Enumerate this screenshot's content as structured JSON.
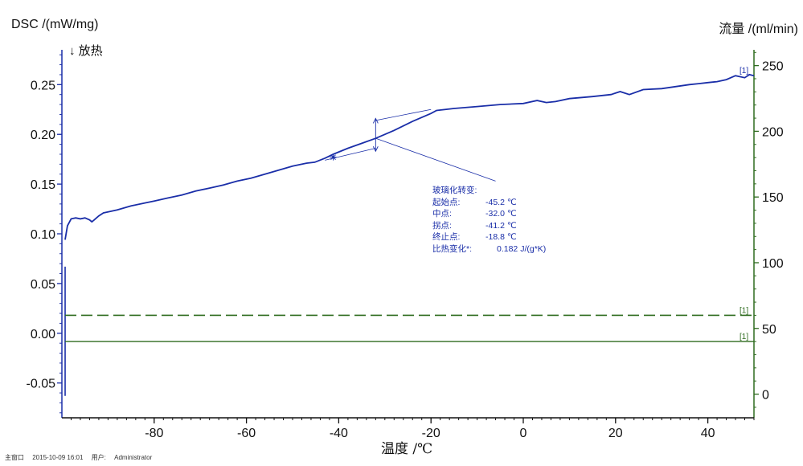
{
  "chart_data": {
    "type": "line",
    "xlabel": "温度 /℃",
    "ylabel": "DSC /(mW/mg)",
    "y2label": "流量 /(ml/min)",
    "exo_label": "↓ 放热",
    "xlim": [
      -100,
      50
    ],
    "ylim": [
      -0.085,
      0.285
    ],
    "y2lim": [
      -18,
      262
    ],
    "x_ticks": [
      -80,
      -60,
      -40,
      -20,
      0,
      20,
      40
    ],
    "y_ticks": [
      0.25,
      0.2,
      0.15,
      0.1,
      0.05,
      0.0,
      -0.05
    ],
    "y_tick_labels": [
      "0.25",
      "0.20",
      "0.15",
      "0.10",
      "0.05",
      "0.00",
      "-0.05"
    ],
    "y2_ticks": [
      250,
      200,
      150,
      100,
      50,
      0
    ],
    "y2_tick_labels": [
      "250",
      "200",
      "150",
      "100",
      "50",
      "0"
    ],
    "colors": {
      "dsc": "#1a2ea8",
      "flow": "#2e6b1e",
      "axis_left": "#1a2ea8",
      "axis_right": "#2e6b1e"
    },
    "series": [
      {
        "axis": "left",
        "style": "solid",
        "color": "#1a2ea8",
        "tag": "[1]",
        "x": [
          -99.3,
          -98.8,
          -98.0,
          -97.0,
          -96.0,
          -95.0,
          -94.0,
          -93.5,
          -93.0,
          -92.0,
          -91.0,
          -90.0,
          -88.0,
          -85.0,
          -82.0,
          -80.0,
          -77.0,
          -74.0,
          -71.0,
          -68.0,
          -65.0,
          -62.0,
          -59.0,
          -56.0,
          -53.0,
          -50.0,
          -47.0,
          -45.2,
          -43.0,
          -41.2,
          -38.0,
          -35.0,
          -32.0,
          -28.0,
          -24.0,
          -20.0,
          -18.8,
          -15.0,
          -10.0,
          -5.0,
          0.0,
          3.0,
          5.0,
          7.0,
          10.0,
          15.0,
          19.0,
          21.0,
          23.0,
          26.0,
          30.0,
          33.0,
          36.0,
          38.0,
          40.0,
          42.0,
          44.0,
          46.0,
          48.0,
          49.0,
          50.0
        ],
        "y": [
          0.094,
          0.108,
          0.115,
          0.116,
          0.115,
          0.116,
          0.114,
          0.112,
          0.114,
          0.118,
          0.121,
          0.122,
          0.124,
          0.128,
          0.131,
          0.133,
          0.136,
          0.139,
          0.143,
          0.146,
          0.149,
          0.153,
          0.156,
          0.16,
          0.164,
          0.168,
          0.171,
          0.172,
          0.176,
          0.18,
          0.186,
          0.191,
          0.196,
          0.204,
          0.213,
          0.221,
          0.224,
          0.226,
          0.228,
          0.23,
          0.231,
          0.234,
          0.232,
          0.233,
          0.236,
          0.238,
          0.24,
          0.243,
          0.24,
          0.245,
          0.246,
          0.248,
          0.25,
          0.251,
          0.252,
          0.253,
          0.255,
          0.259,
          0.257,
          0.26,
          0.259
        ]
      },
      {
        "axis": "right",
        "style": "dashed",
        "color": "#2e6b1e",
        "tag": "[1]",
        "x": [
          -99.3,
          50.0
        ],
        "y": [
          60,
          60
        ]
      },
      {
        "axis": "right",
        "style": "solid",
        "color": "#2e6b1e",
        "tag": "[1]",
        "x": [
          -99.3,
          50.0
        ],
        "y": [
          40,
          40
        ]
      }
    ],
    "annotation": {
      "title": "玻璃化转变:",
      "rows": [
        {
          "key": "起始点:",
          "value": "-45.2 ℃"
        },
        {
          "key": "中点:",
          "value": "-32.0 ℃"
        },
        {
          "key": "拐点:",
          "value": "-41.2 ℃"
        },
        {
          "key": "终止点:",
          "value": "-18.8 ℃"
        },
        {
          "key": "比热变化*:",
          "value": "0.182 J/(g*K)"
        }
      ],
      "midpoint": [
        -32.0,
        0.196
      ],
      "onset": [
        -41.2,
        0.177
      ],
      "step_low": [
        -32.0,
        0.183
      ],
      "step_high": [
        -32.0,
        0.216
      ],
      "tangent_low": {
        "x": [
          -43.0,
          -32.0
        ],
        "y": [
          0.174,
          0.186
        ]
      },
      "tangent_high": {
        "x": [
          -32.0,
          -20.0
        ],
        "y": [
          0.214,
          0.225
        ]
      },
      "leader_to": [
        -6.0,
        0.153
      ]
    },
    "grid": false
  },
  "footer": {
    "window": "主窗口",
    "datetime": "2015-10-09 16:01",
    "user_label": "用户:",
    "user": "Administrator"
  }
}
